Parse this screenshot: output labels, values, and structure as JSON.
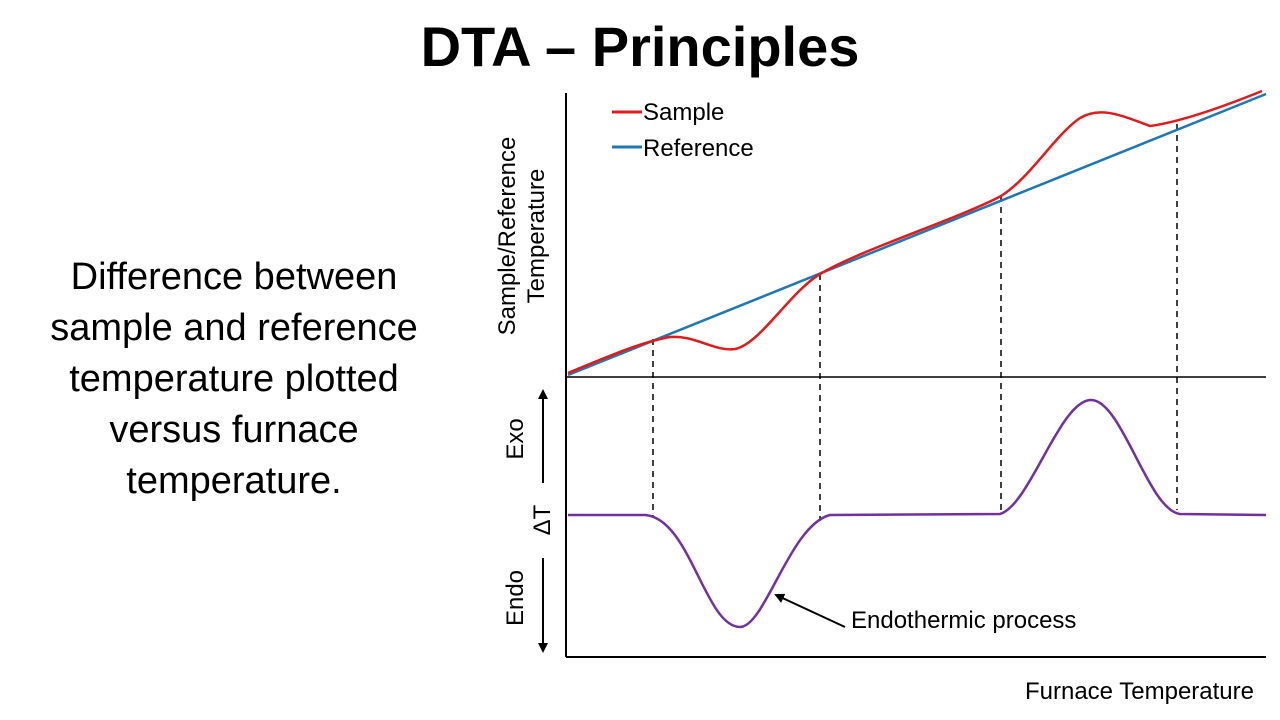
{
  "slide": {
    "title": "DTA – Principles",
    "description": "Difference between sample and reference temperature plotted versus furnace temperature."
  },
  "diagram": {
    "top_panel": {
      "y_axis_label_line1": "Sample/Reference",
      "y_axis_label_line2": "Temperature",
      "legend": [
        {
          "label": "Sample",
          "color": "#e31a1c"
        },
        {
          "label": "Reference",
          "color": "#1f78b4"
        }
      ]
    },
    "bottom_panel": {
      "exo_label": "Exo",
      "delta_t_label": "ΔT",
      "endo_label": "Endo",
      "curve_color": "#7030a0",
      "annotation": "Endothermic process"
    },
    "x_axis_label": "Furnace Temperature"
  }
}
